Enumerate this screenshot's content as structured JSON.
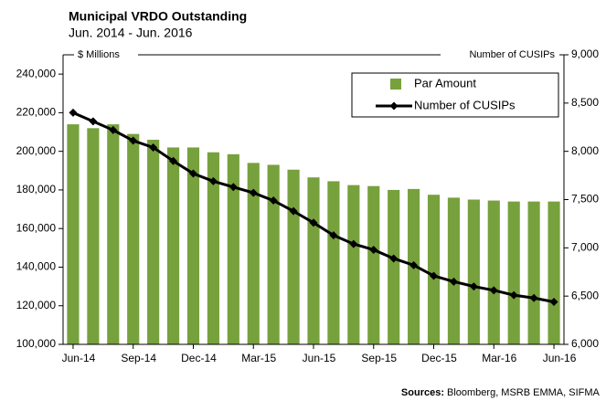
{
  "chart_data": {
    "type": "bar_line",
    "title": "Municipal VRDO Outstanding",
    "subtitle": "Jun. 2014 - Jun. 2016",
    "y_label": "$ Millions",
    "y2_label": "Number of CUSIPs",
    "source_label": "Sources:",
    "source": "Bloomberg, MSRB EMMA, SIFMA",
    "categories": [
      "Jun-14",
      null,
      null,
      "Sep-14",
      null,
      null,
      "Dec-14",
      null,
      null,
      "Mar-15",
      null,
      null,
      "Jun-15",
      null,
      null,
      "Sep-15",
      null,
      null,
      "Dec-15",
      null,
      null,
      "Mar-16",
      null,
      null,
      "Jun-16"
    ],
    "series": [
      {
        "name": "Par Amount",
        "type": "bar",
        "color": "#77a13d",
        "values": [
          214000,
          212000,
          214000,
          209000,
          206000,
          202000,
          202000,
          199500,
          198500,
          194000,
          193000,
          190500,
          186500,
          184500,
          182500,
          182000,
          180000,
          180500,
          177500,
          176000,
          175000,
          174500,
          174000,
          174000,
          174000
        ]
      },
      {
        "name": "Number of CUSIPs",
        "type": "line",
        "axis": "y2",
        "color": "#000000",
        "values": [
          8400,
          8310,
          8220,
          8110,
          8040,
          7900,
          7770,
          7690,
          7630,
          7570,
          7490,
          7380,
          7260,
          7130,
          7040,
          6980,
          6890,
          6820,
          6710,
          6650,
          6600,
          6560,
          6510,
          6480,
          6440
        ]
      }
    ],
    "ylim": [
      100000,
      250000
    ],
    "yticks": [
      {
        "value": 100000,
        "label": "100,000"
      },
      {
        "value": 120000,
        "label": "120,000"
      },
      {
        "value": 140000,
        "label": "140,000"
      },
      {
        "value": 160000,
        "label": "160,000"
      },
      {
        "value": 180000,
        "label": "180,000"
      },
      {
        "value": 200000,
        "label": "200,000"
      },
      {
        "value": 220000,
        "label": "220,000"
      },
      {
        "value": 240000,
        "label": "240,000"
      }
    ],
    "y2lim": [
      6000,
      9000
    ],
    "y2ticks": [
      {
        "value": 6000,
        "label": "6,000"
      },
      {
        "value": 6500,
        "label": "6,500"
      },
      {
        "value": 7000,
        "label": "7,000"
      },
      {
        "value": 7500,
        "label": "7,500"
      },
      {
        "value": 8000,
        "label": "8,000"
      },
      {
        "value": 8500,
        "label": "8,500"
      },
      {
        "value": 9000,
        "label": "9,000"
      }
    ],
    "grid": false,
    "legend": "upper right"
  }
}
